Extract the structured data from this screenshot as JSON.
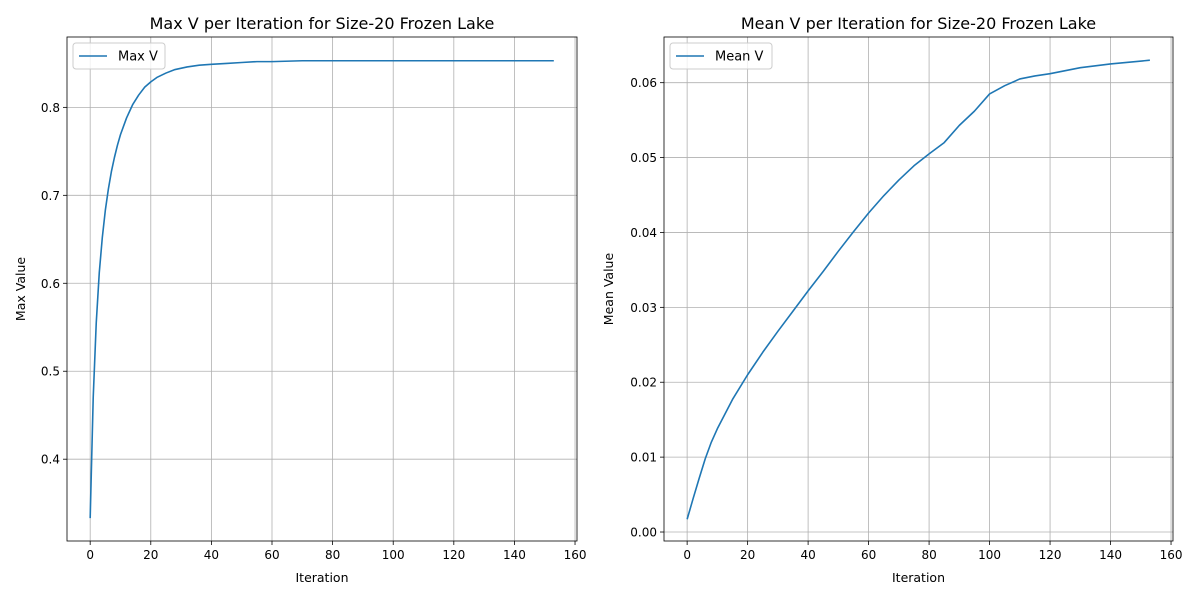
{
  "chart_data": [
    {
      "type": "line",
      "title": "Max V per Iteration for Size-20 Frozen Lake",
      "xlabel": "Iteration",
      "ylabel": "Max Value",
      "xlim": [
        -7.65,
        160.65
      ],
      "ylim": [
        0.307,
        0.88
      ],
      "xticks": [
        0,
        20,
        40,
        60,
        80,
        100,
        120,
        140,
        160
      ],
      "xtick_labels": [
        "0",
        "20",
        "40",
        "60",
        "80",
        "100",
        "120",
        "140",
        "160"
      ],
      "yticks": [
        0.4,
        0.5,
        0.6,
        0.7,
        0.8
      ],
      "ytick_labels": [
        "0.4",
        "0.5",
        "0.6",
        "0.7",
        "0.8"
      ],
      "grid": true,
      "legend": "upper left",
      "color": "#1f77b4",
      "series": [
        {
          "name": "Max V",
          "x": [
            0,
            1,
            2,
            3,
            4,
            5,
            6,
            7,
            8,
            9,
            10,
            12,
            14,
            16,
            18,
            20,
            22,
            25,
            28,
            32,
            36,
            40,
            45,
            50,
            55,
            60,
            70,
            80,
            90,
            100,
            110,
            120,
            130,
            140,
            153
          ],
          "y": [
            0.333,
            0.47,
            0.555,
            0.612,
            0.652,
            0.683,
            0.707,
            0.727,
            0.743,
            0.757,
            0.769,
            0.788,
            0.803,
            0.814,
            0.823,
            0.829,
            0.834,
            0.839,
            0.843,
            0.846,
            0.848,
            0.849,
            0.85,
            0.851,
            0.852,
            0.852,
            0.853,
            0.853,
            0.853,
            0.853,
            0.853,
            0.853,
            0.853,
            0.853,
            0.853
          ]
        }
      ]
    },
    {
      "type": "line",
      "title": "Mean V per Iteration for Size-20 Frozen Lake",
      "xlabel": "Iteration",
      "ylabel": "Mean Value",
      "xlim": [
        -7.65,
        160.65
      ],
      "ylim": [
        -0.0012,
        0.0661
      ],
      "xticks": [
        0,
        20,
        40,
        60,
        80,
        100,
        120,
        140,
        160
      ],
      "xtick_labels": [
        "0",
        "20",
        "40",
        "60",
        "80",
        "100",
        "120",
        "140",
        "160"
      ],
      "yticks": [
        0.0,
        0.01,
        0.02,
        0.03,
        0.04,
        0.05,
        0.06
      ],
      "ytick_labels": [
        "0.00",
        "0.01",
        "0.02",
        "0.03",
        "0.04",
        "0.05",
        "0.06"
      ],
      "grid": true,
      "legend": "upper left",
      "color": "#1f77b4",
      "series": [
        {
          "name": "Mean V",
          "x": [
            0,
            2,
            4,
            6,
            8,
            10,
            15,
            20,
            25,
            30,
            35,
            40,
            45,
            50,
            55,
            60,
            65,
            70,
            75,
            80,
            85,
            90,
            95,
            100,
            105,
            110,
            115,
            120,
            125,
            130,
            140,
            153
          ],
          "y": [
            0.0017,
            0.0045,
            0.0072,
            0.0098,
            0.012,
            0.0138,
            0.0177,
            0.021,
            0.024,
            0.0268,
            0.0295,
            0.0322,
            0.0348,
            0.0375,
            0.0401,
            0.0426,
            0.0449,
            0.047,
            0.0489,
            0.0505,
            0.052,
            0.0543,
            0.0562,
            0.0585,
            0.0596,
            0.0605,
            0.0609,
            0.0612,
            0.0616,
            0.062,
            0.0625,
            0.063
          ]
        }
      ]
    }
  ]
}
